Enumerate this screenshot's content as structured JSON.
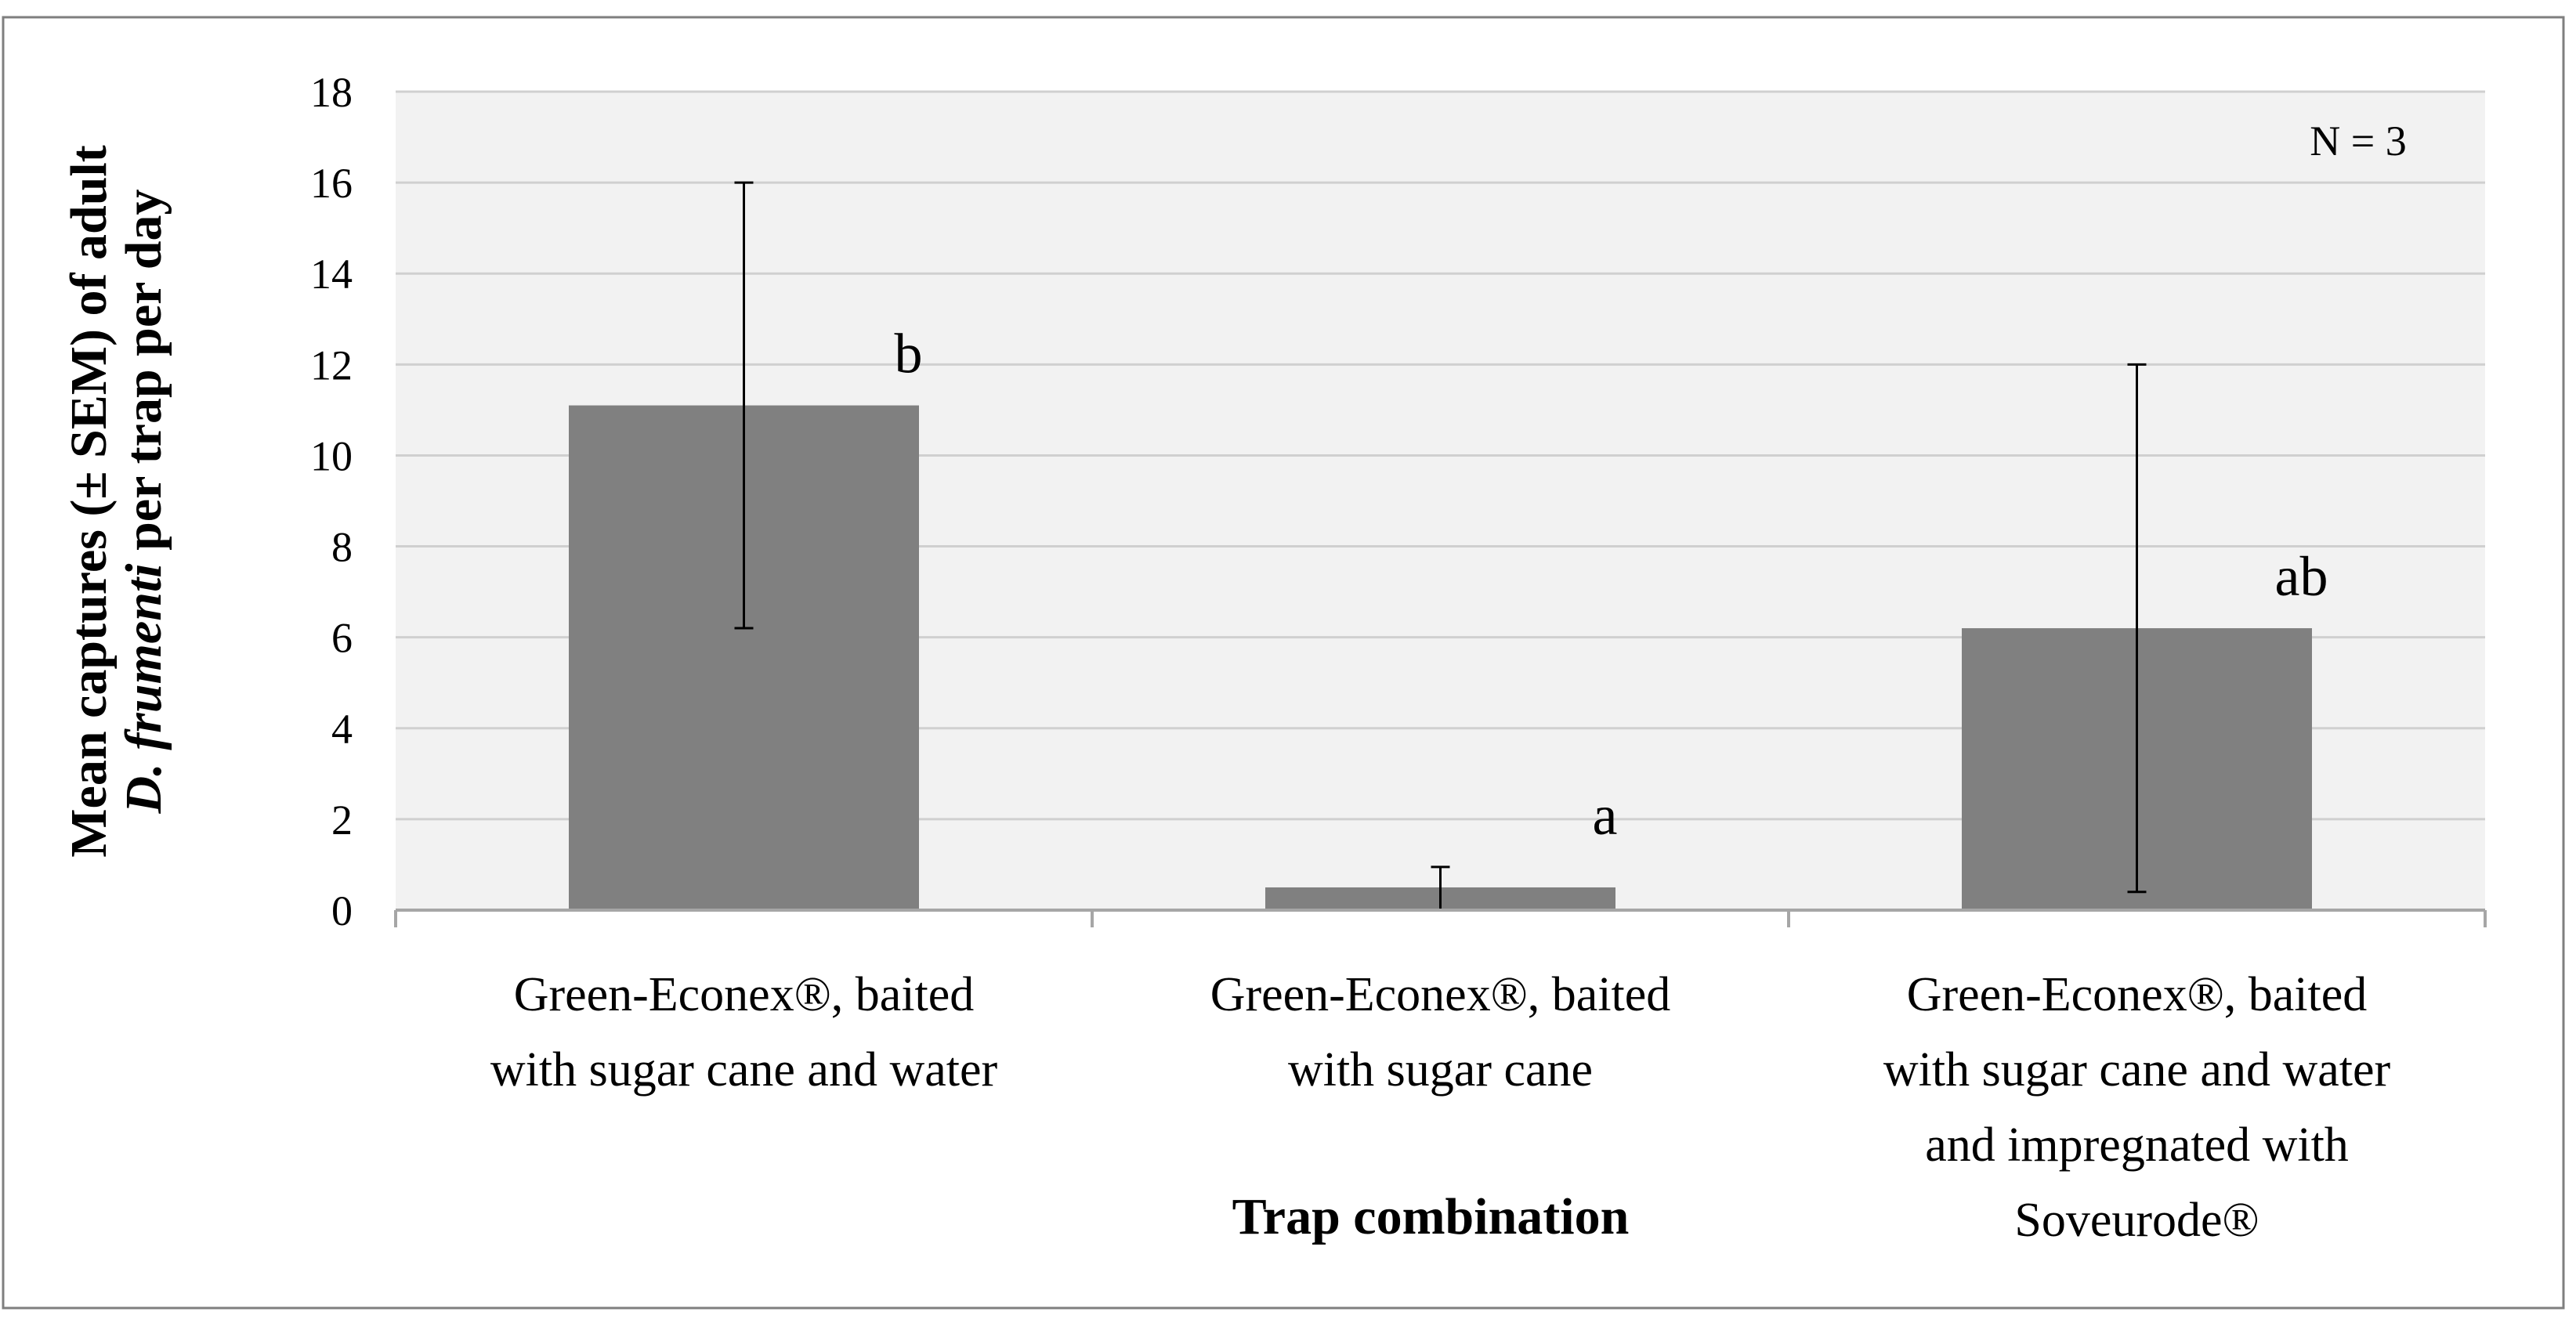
{
  "chart_data": {
    "type": "bar",
    "ylabel_line1_prefix": "Mean captures (± SEM) of adult",
    "ylabel_line2_italic": "D. frumenti",
    "ylabel_line2_rest": " per trap per day",
    "xlabel": "Trap combination",
    "ylim": [
      0,
      18
    ],
    "yticks": [
      0,
      2,
      4,
      6,
      8,
      10,
      12,
      14,
      16,
      18
    ],
    "grid": true,
    "note": "N = 3",
    "categories": [
      [
        "Green-Econex®, baited",
        "with sugar cane and water"
      ],
      [
        "Green-Econex®, baited",
        "with sugar cane"
      ],
      [
        "Green-Econex®, baited",
        "with sugar cane and water",
        "and impregnated with",
        "Soveurode®"
      ]
    ],
    "values": [
      11.1,
      0.5,
      6.2
    ],
    "error_bars": [
      {
        "low": 6.2,
        "high": 16.0
      },
      {
        "low": 0.0,
        "high": 0.95
      },
      {
        "low": 0.4,
        "high": 12.0
      }
    ],
    "significance_letters": [
      "b",
      "a",
      "ab"
    ],
    "colors": {
      "bar": "#808080",
      "plot_background": "#f2f2f2",
      "grid": "#d0d0d0",
      "axis": "#a6a6a6",
      "frame": "#7f7f7f"
    }
  }
}
